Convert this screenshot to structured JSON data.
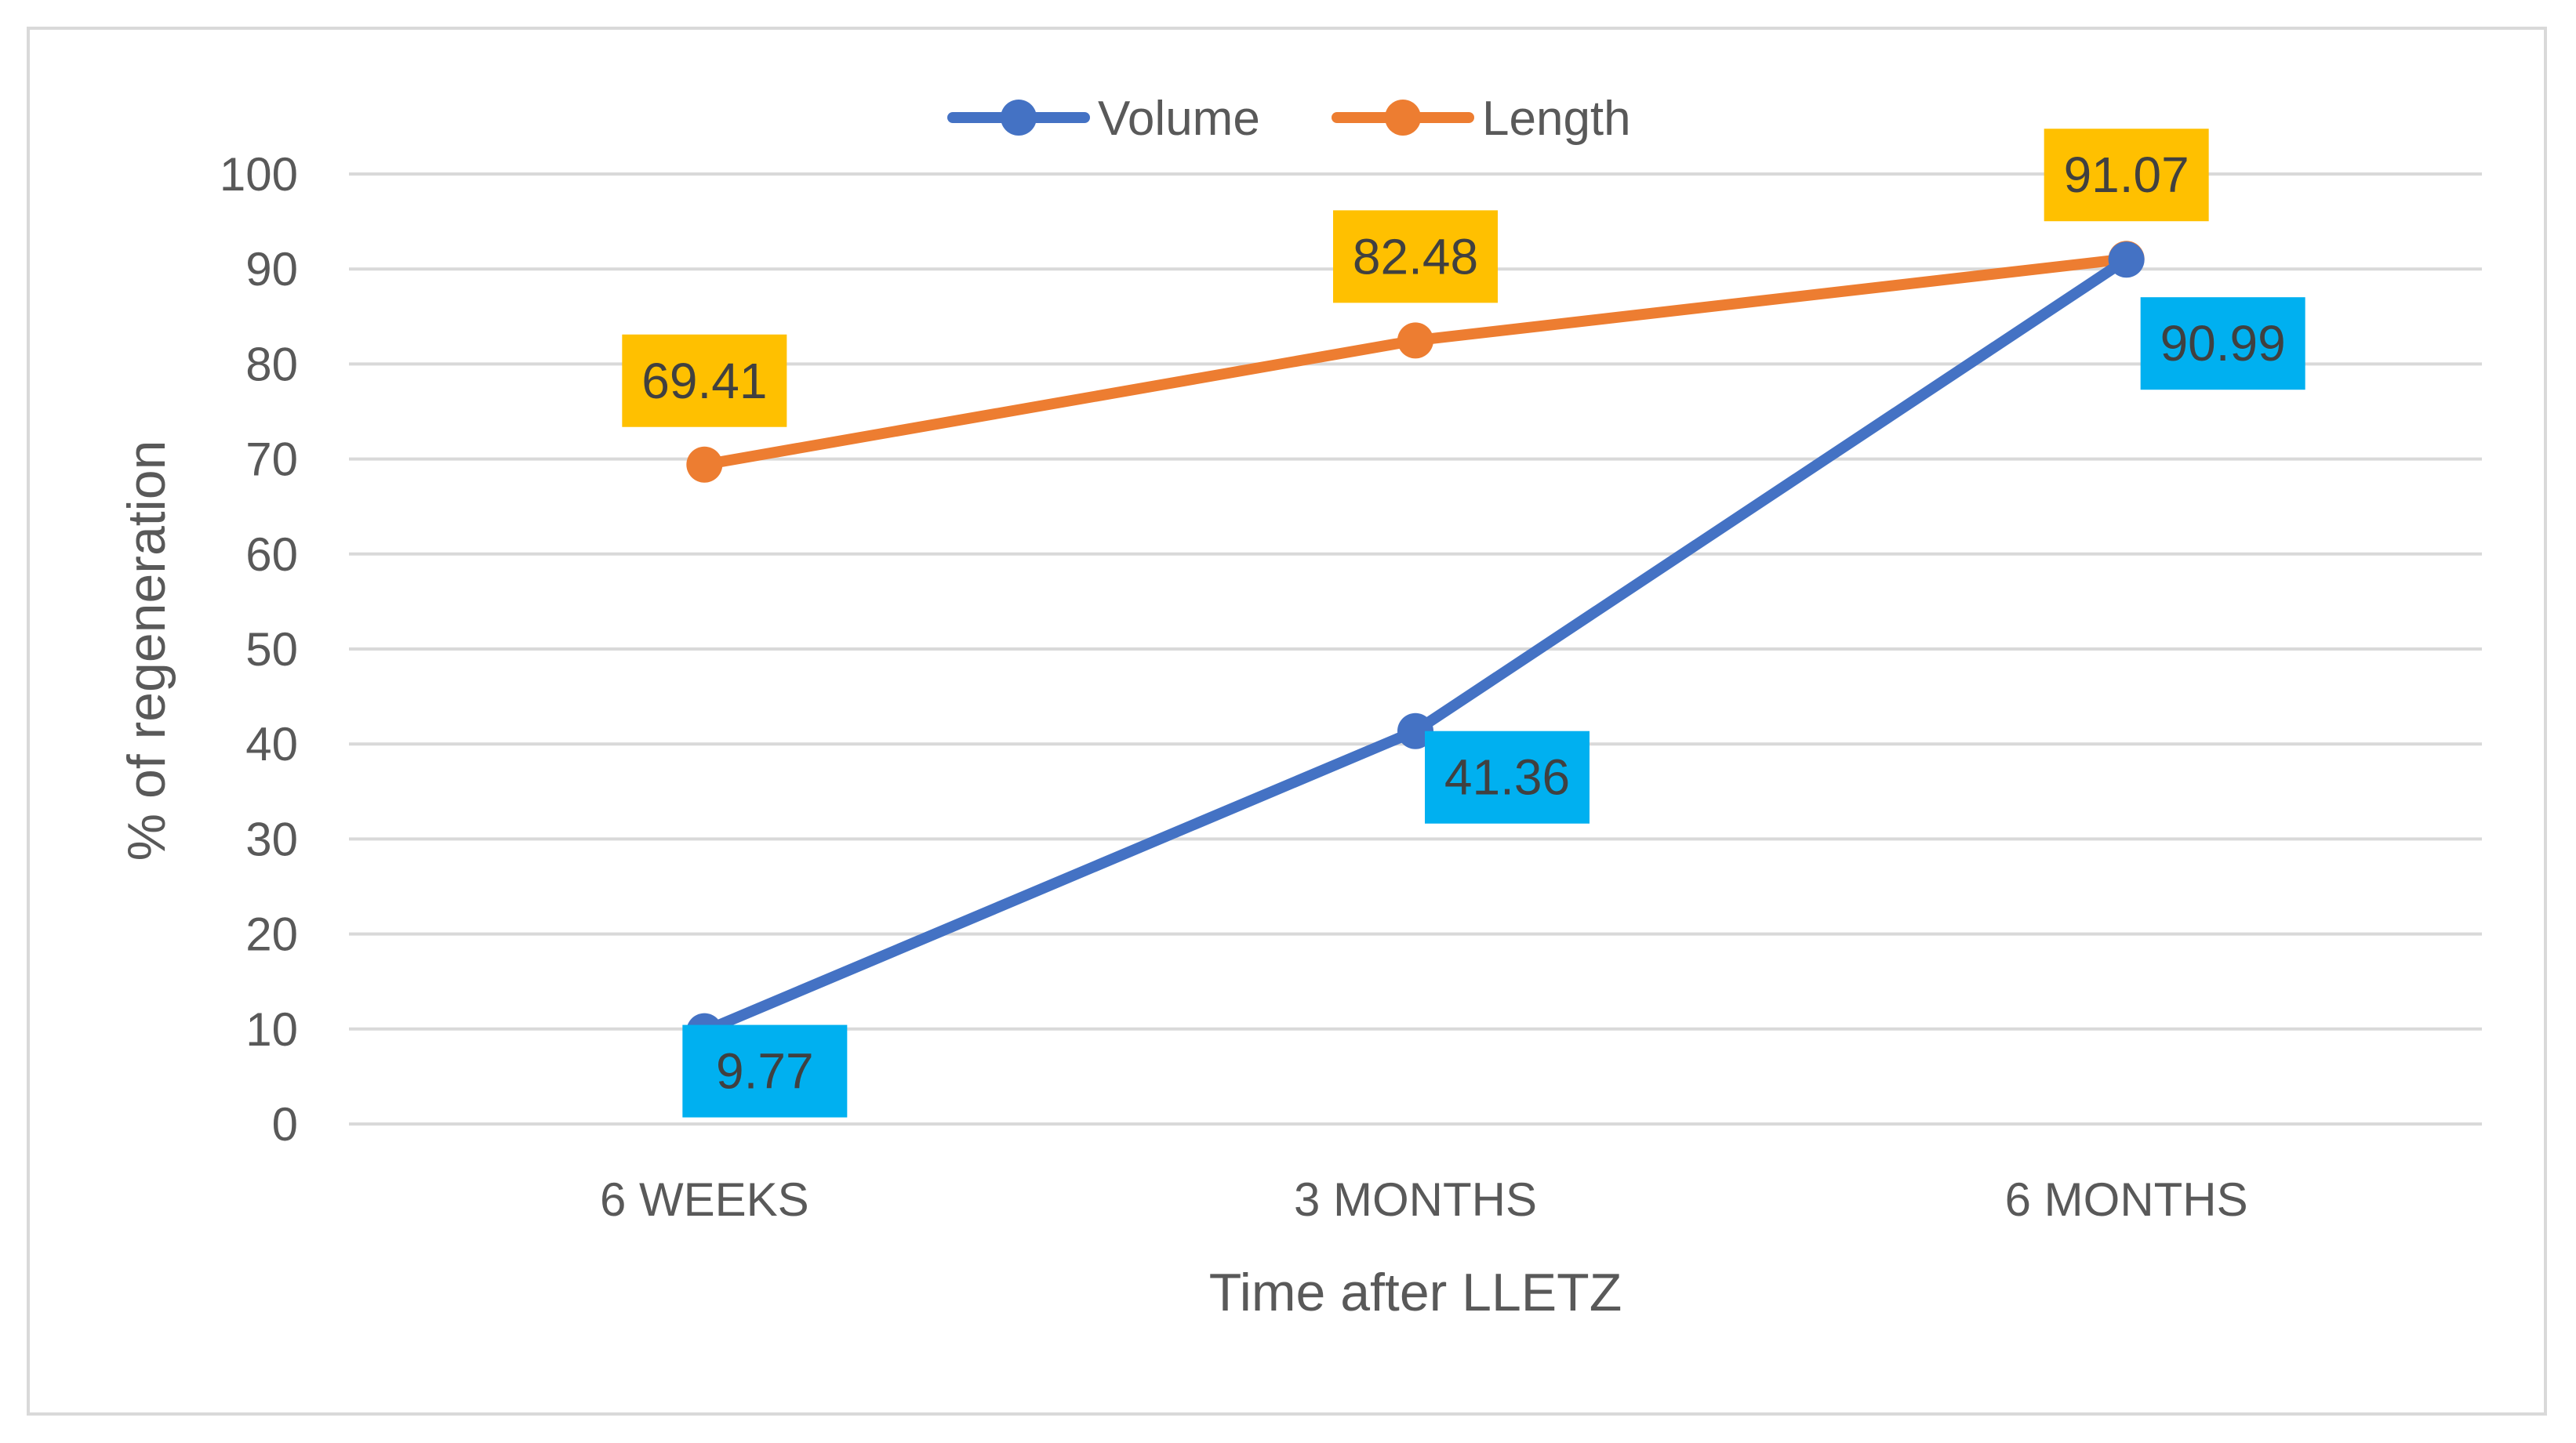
{
  "chart_data": {
    "type": "line",
    "title": "",
    "xlabel": "Time after LLETZ",
    "ylabel": "% of regeneration",
    "categories": [
      "6 WEEKS",
      "3 MONTHS",
      "6 MONTHS"
    ],
    "ylim": [
      0,
      100
    ],
    "yticks": [
      0,
      10,
      20,
      30,
      40,
      50,
      60,
      70,
      80,
      90,
      100
    ],
    "grid": true,
    "legend_position": "top",
    "series": [
      {
        "name": "Volume",
        "values": [
          9.77,
          41.36,
          90.99
        ],
        "labels": [
          "9.77",
          "41.36",
          "90.99"
        ],
        "line_color": "#4472C4",
        "label_bg": "#00B0F0",
        "label_placement": "below-right"
      },
      {
        "name": "Length",
        "values": [
          69.41,
          82.48,
          91.07
        ],
        "labels": [
          "69.41",
          "82.48",
          "91.07"
        ],
        "line_color": "#ED7D31",
        "label_bg": "#FFC000",
        "label_placement": "above"
      }
    ]
  }
}
